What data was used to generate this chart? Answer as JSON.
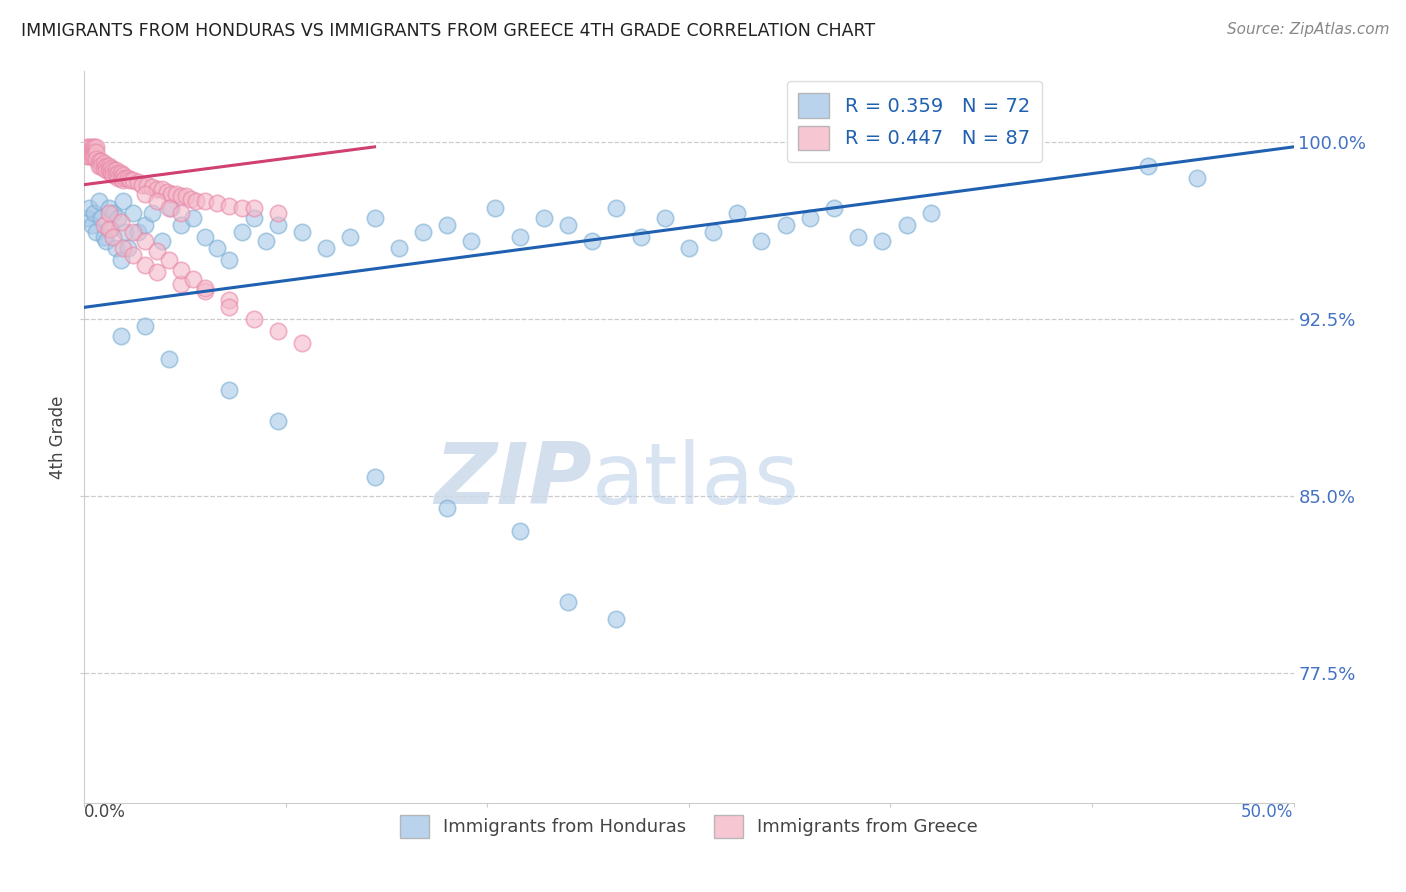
{
  "title": "IMMIGRANTS FROM HONDURAS VS IMMIGRANTS FROM GREECE 4TH GRADE CORRELATION CHART",
  "source": "Source: ZipAtlas.com",
  "ylabel": "4th Grade",
  "y_ticks": [
    0.775,
    0.85,
    0.925,
    1.0
  ],
  "y_tick_labels": [
    "77.5%",
    "85.0%",
    "92.5%",
    "100.0%"
  ],
  "xlim": [
    0.0,
    0.5
  ],
  "ylim": [
    0.72,
    1.03
  ],
  "legend_r_blue": "R = 0.359",
  "legend_n_blue": "N = 72",
  "legend_r_pink": "R = 0.447",
  "legend_n_pink": "N = 87",
  "legend_label_blue": "Immigrants from Honduras",
  "legend_label_pink": "Immigrants from Greece",
  "blue_color": "#a8c8e8",
  "blue_edge_color": "#7bafd4",
  "pink_color": "#f4b8c8",
  "pink_edge_color": "#e888a8",
  "trendline_blue_color": "#2060b0",
  "trendline_pink_color": "#d04070",
  "watermark_zip": "ZIP",
  "watermark_atlas": "atlas",
  "blue_scatter_x": [
    0.001,
    0.002,
    0.003,
    0.004,
    0.005,
    0.006,
    0.007,
    0.008,
    0.009,
    0.01,
    0.011,
    0.012,
    0.013,
    0.014,
    0.015,
    0.016,
    0.017,
    0.018,
    0.02,
    0.022,
    0.025,
    0.028,
    0.032,
    0.036,
    0.04,
    0.045,
    0.05,
    0.055,
    0.06,
    0.065,
    0.07,
    0.075,
    0.08,
    0.09,
    0.1,
    0.11,
    0.12,
    0.13,
    0.14,
    0.15,
    0.16,
    0.17,
    0.18,
    0.19,
    0.2,
    0.21,
    0.22,
    0.23,
    0.24,
    0.25,
    0.26,
    0.27,
    0.28,
    0.29,
    0.3,
    0.31,
    0.32,
    0.33,
    0.34,
    0.35,
    0.015,
    0.025,
    0.035,
    0.06,
    0.08,
    0.12,
    0.15,
    0.18,
    0.2,
    0.22,
    0.44,
    0.46
  ],
  "blue_scatter_y": [
    0.968,
    0.972,
    0.965,
    0.97,
    0.962,
    0.975,
    0.968,
    0.96,
    0.958,
    0.972,
    0.963,
    0.97,
    0.955,
    0.968,
    0.95,
    0.975,
    0.962,
    0.955,
    0.97,
    0.962,
    0.965,
    0.97,
    0.958,
    0.972,
    0.965,
    0.968,
    0.96,
    0.955,
    0.95,
    0.962,
    0.968,
    0.958,
    0.965,
    0.962,
    0.955,
    0.96,
    0.968,
    0.955,
    0.962,
    0.965,
    0.958,
    0.972,
    0.96,
    0.968,
    0.965,
    0.958,
    0.972,
    0.96,
    0.968,
    0.955,
    0.962,
    0.97,
    0.958,
    0.965,
    0.968,
    0.972,
    0.96,
    0.958,
    0.965,
    0.97,
    0.918,
    0.922,
    0.908,
    0.895,
    0.882,
    0.858,
    0.845,
    0.835,
    0.805,
    0.798,
    0.99,
    0.985
  ],
  "pink_scatter_x": [
    0.001,
    0.001,
    0.001,
    0.002,
    0.002,
    0.002,
    0.003,
    0.003,
    0.003,
    0.004,
    0.004,
    0.004,
    0.005,
    0.005,
    0.005,
    0.006,
    0.006,
    0.007,
    0.007,
    0.008,
    0.008,
    0.009,
    0.009,
    0.01,
    0.01,
    0.011,
    0.011,
    0.012,
    0.012,
    0.013,
    0.013,
    0.014,
    0.014,
    0.015,
    0.015,
    0.016,
    0.016,
    0.017,
    0.018,
    0.019,
    0.02,
    0.022,
    0.024,
    0.026,
    0.028,
    0.03,
    0.032,
    0.034,
    0.036,
    0.038,
    0.04,
    0.042,
    0.044,
    0.046,
    0.05,
    0.055,
    0.06,
    0.065,
    0.07,
    0.08,
    0.025,
    0.03,
    0.035,
    0.04,
    0.008,
    0.01,
    0.012,
    0.016,
    0.02,
    0.025,
    0.03,
    0.04,
    0.05,
    0.06,
    0.01,
    0.015,
    0.02,
    0.025,
    0.03,
    0.035,
    0.04,
    0.045,
    0.05,
    0.06,
    0.07,
    0.08,
    0.09
  ],
  "pink_scatter_y": [
    0.998,
    0.996,
    0.994,
    0.998,
    0.996,
    0.994,
    0.998,
    0.996,
    0.994,
    0.998,
    0.996,
    0.994,
    0.998,
    0.996,
    0.993,
    0.992,
    0.99,
    0.992,
    0.99,
    0.991,
    0.989,
    0.99,
    0.988,
    0.99,
    0.988,
    0.989,
    0.987,
    0.988,
    0.986,
    0.988,
    0.986,
    0.987,
    0.985,
    0.987,
    0.985,
    0.986,
    0.984,
    0.985,
    0.985,
    0.984,
    0.984,
    0.983,
    0.982,
    0.982,
    0.981,
    0.98,
    0.98,
    0.979,
    0.978,
    0.978,
    0.977,
    0.977,
    0.976,
    0.975,
    0.975,
    0.974,
    0.973,
    0.972,
    0.972,
    0.97,
    0.978,
    0.975,
    0.972,
    0.97,
    0.965,
    0.963,
    0.96,
    0.955,
    0.952,
    0.948,
    0.945,
    0.94,
    0.937,
    0.933,
    0.97,
    0.966,
    0.962,
    0.958,
    0.954,
    0.95,
    0.946,
    0.942,
    0.938,
    0.93,
    0.925,
    0.92,
    0.915
  ],
  "blue_trendline": [
    0.0,
    0.5,
    0.93,
    0.998
  ],
  "pink_trendline": [
    0.0,
    0.12,
    0.982,
    0.998
  ]
}
